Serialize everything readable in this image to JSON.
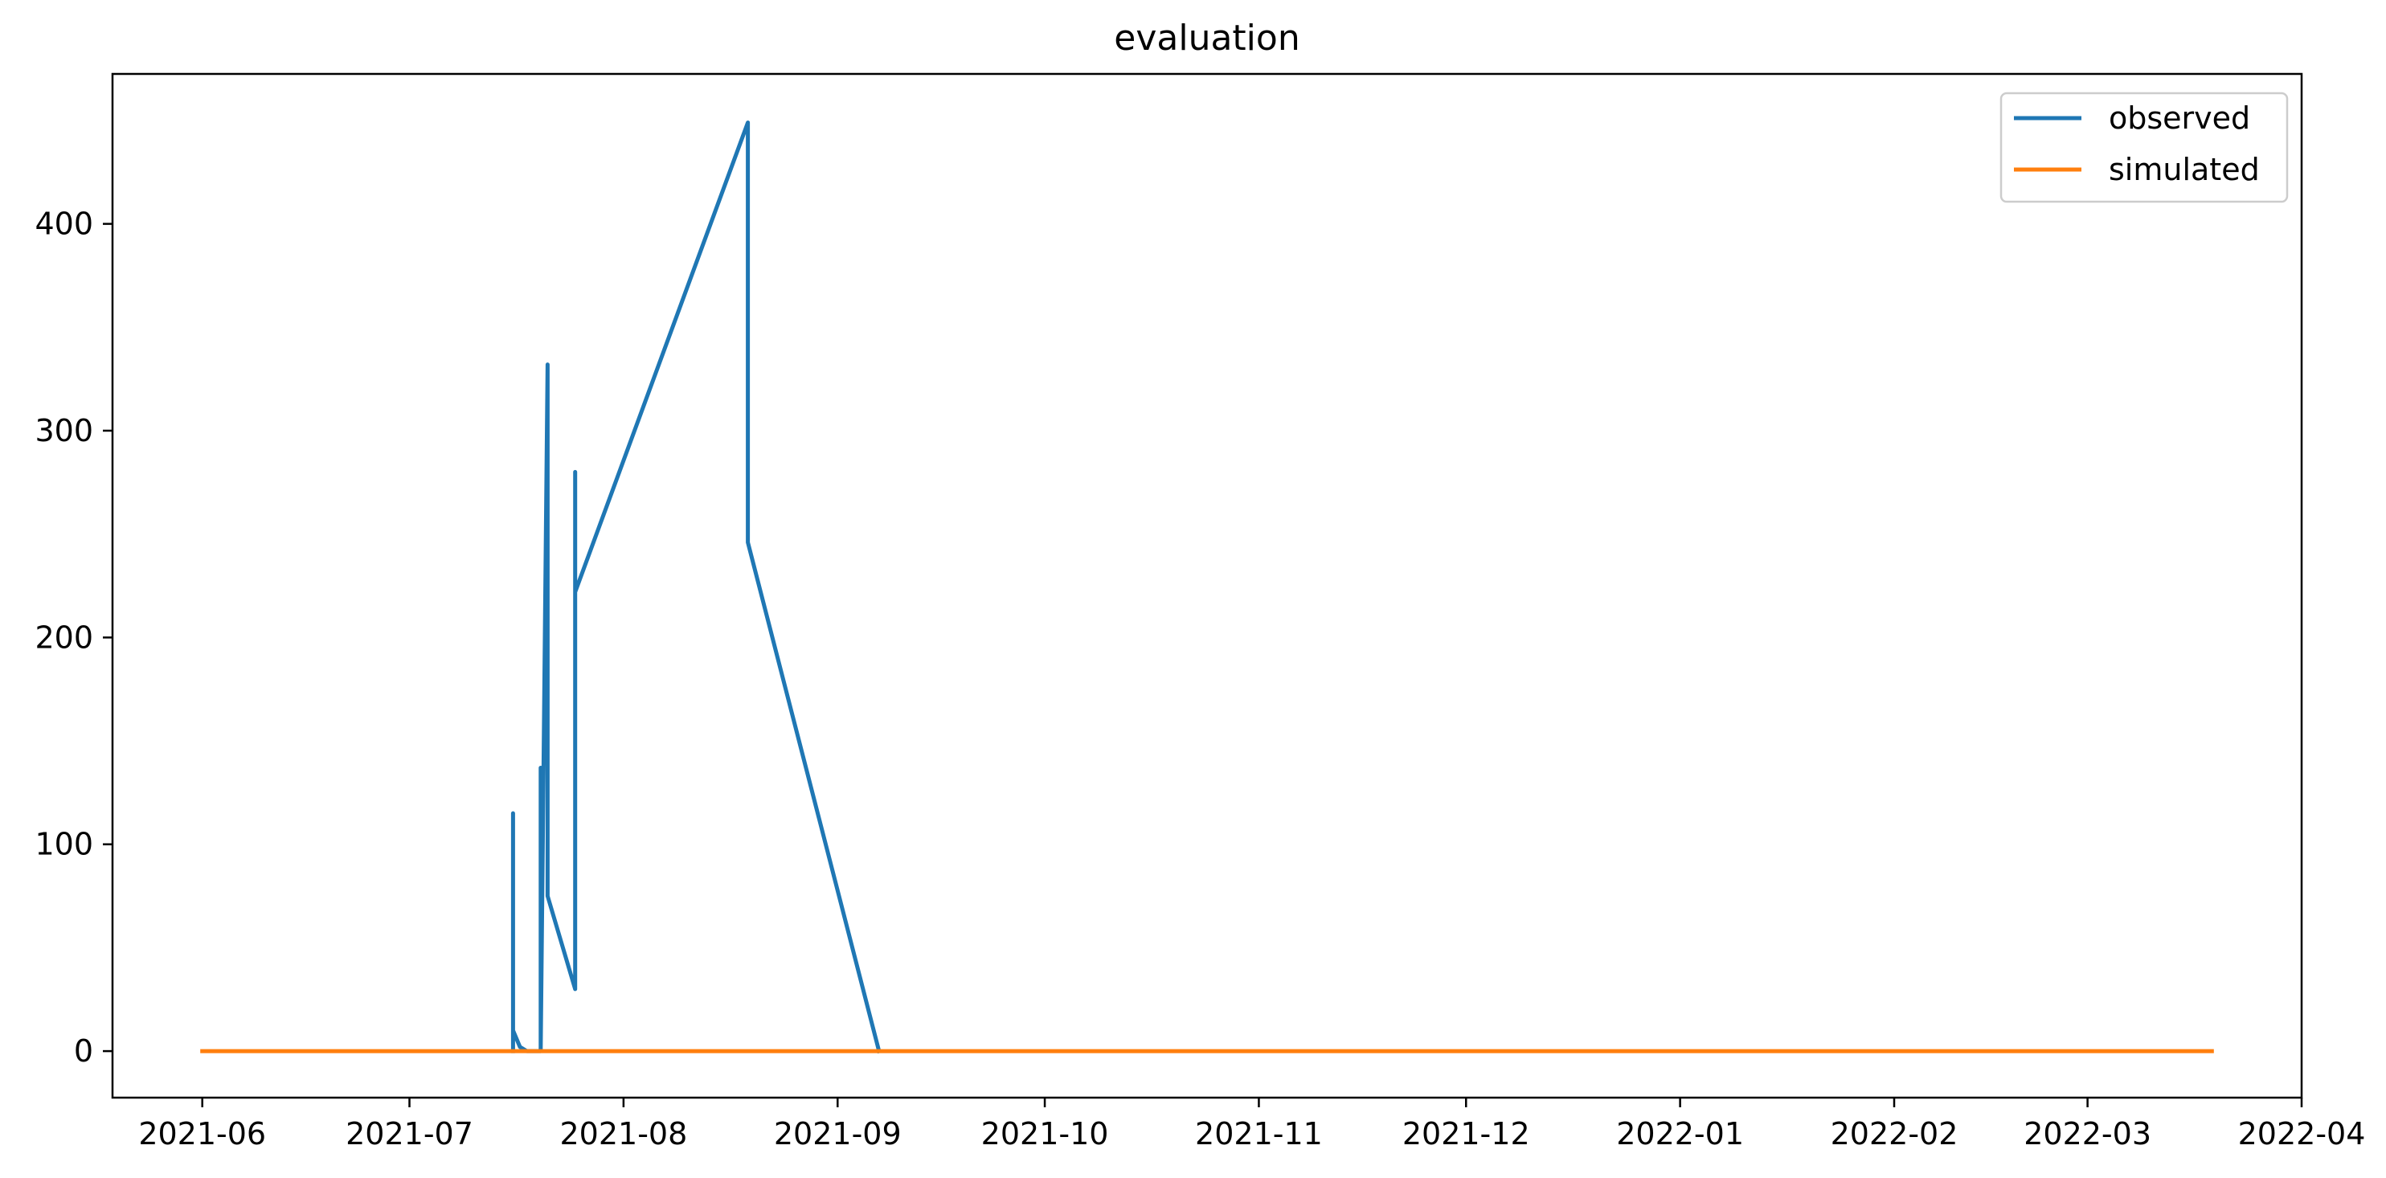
{
  "chart_data": {
    "type": "line",
    "title": "evaluation",
    "xlabel": "",
    "ylabel": "",
    "xlim": [
      "2021-05-19",
      "2022-04-01"
    ],
    "ylim": [
      -22.5,
      472.5
    ],
    "x_ticks": [
      "2021-06",
      "2021-07",
      "2021-08",
      "2021-09",
      "2021-10",
      "2021-11",
      "2021-12",
      "2022-01",
      "2022-02",
      "2022-03",
      "2022-04"
    ],
    "x_tick_dates": [
      "2021-06-01",
      "2021-07-01",
      "2021-08-01",
      "2021-09-01",
      "2021-10-01",
      "2021-11-01",
      "2021-12-01",
      "2022-01-01",
      "2022-02-01",
      "2022-03-01",
      "2022-04-01"
    ],
    "y_ticks": [
      "0",
      "100",
      "200",
      "300",
      "400"
    ],
    "y_tick_values": [
      0,
      100,
      200,
      300,
      400
    ],
    "grid": false,
    "legend_position": "top-right",
    "series": [
      {
        "name": "observed",
        "color": "#1f77b4",
        "points": [
          [
            "2021-07-16",
            0
          ],
          [
            "2021-07-16",
            115
          ],
          [
            "2021-07-16",
            10
          ],
          [
            "2021-07-17",
            2
          ],
          [
            "2021-07-18",
            0
          ],
          [
            "2021-07-20",
            0
          ],
          [
            "2021-07-20",
            137
          ],
          [
            "2021-07-20",
            0
          ],
          [
            "2021-07-21",
            332
          ],
          [
            "2021-07-21",
            75
          ],
          [
            "2021-07-25",
            30
          ],
          [
            "2021-07-25",
            75
          ],
          [
            "2021-07-25",
            30
          ],
          [
            "2021-07-25",
            280
          ],
          [
            "2021-07-25",
            210
          ],
          [
            "2021-07-25",
            222
          ],
          [
            "2021-08-19",
            449
          ],
          [
            "2021-08-19",
            246
          ],
          [
            "2021-09-07",
            0
          ]
        ]
      },
      {
        "name": "simulated",
        "color": "#ff7f0e",
        "points": [
          [
            "2021-06-01",
            0
          ],
          [
            "2022-03-19",
            0
          ]
        ]
      }
    ]
  }
}
